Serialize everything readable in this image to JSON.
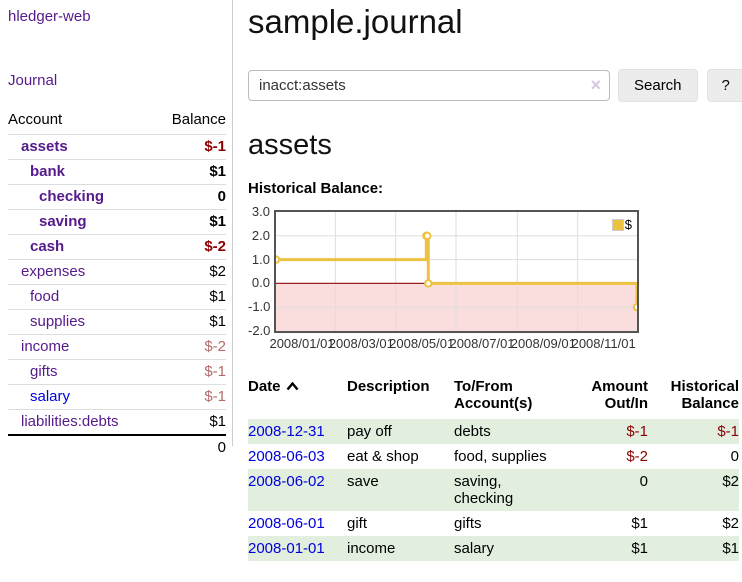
{
  "app": {
    "brand": "hledger-web",
    "nav_journal": "Journal"
  },
  "sidebar": {
    "headers": {
      "account": "Account",
      "balance": "Balance"
    },
    "accounts": [
      {
        "name": "assets",
        "indent": 1,
        "bold": true,
        "blue": false,
        "balance": "$-1",
        "balance_style": "neg-strong"
      },
      {
        "name": "bank",
        "indent": 2,
        "bold": true,
        "blue": false,
        "balance": "$1",
        "balance_style": "pos"
      },
      {
        "name": "checking",
        "indent": 3,
        "bold": true,
        "blue": false,
        "balance": "0",
        "balance_style": "pos"
      },
      {
        "name": "saving",
        "indent": 3,
        "bold": true,
        "blue": false,
        "balance": "$1",
        "balance_style": "pos"
      },
      {
        "name": "cash",
        "indent": 2,
        "bold": true,
        "blue": false,
        "balance": "$-2",
        "balance_style": "neg-strong"
      },
      {
        "name": "expenses",
        "indent": 1,
        "bold": false,
        "blue": false,
        "balance": "$2",
        "balance_style": "pos"
      },
      {
        "name": "food",
        "indent": 2,
        "bold": false,
        "blue": false,
        "balance": "$1",
        "balance_style": "pos"
      },
      {
        "name": "supplies",
        "indent": 2,
        "bold": false,
        "blue": false,
        "balance": "$1",
        "balance_style": "pos"
      },
      {
        "name": "income",
        "indent": 1,
        "bold": false,
        "blue": false,
        "balance": "$-2",
        "balance_style": "neg-muted"
      },
      {
        "name": "gifts",
        "indent": 2,
        "bold": false,
        "blue": false,
        "balance": "$-1",
        "balance_style": "neg-muted"
      },
      {
        "name": "salary",
        "indent": 2,
        "bold": false,
        "blue": true,
        "balance": "$-1",
        "balance_style": "neg-muted"
      },
      {
        "name": "liabilities:debts",
        "indent": 1,
        "bold": false,
        "blue": false,
        "balance": "$1",
        "balance_style": "pos"
      }
    ],
    "total": "0"
  },
  "header": {
    "title": "sample.journal"
  },
  "search": {
    "value": "inacct:assets",
    "clear_icon": "×",
    "button_label": "Search",
    "help_label": "?"
  },
  "account_page": {
    "title": "assets",
    "chart_label": "Historical Balance:"
  },
  "chart_data": {
    "type": "line",
    "step": true,
    "series": [
      {
        "name": "$",
        "color": "#edc240",
        "points": [
          {
            "date": "2008-01-01",
            "value": 1
          },
          {
            "date": "2008-06-01",
            "value": 2
          },
          {
            "date": "2008-06-02",
            "value": 2
          },
          {
            "date": "2008-06-03",
            "value": 0
          },
          {
            "date": "2008-12-31",
            "value": -1
          }
        ]
      }
    ],
    "xrange": [
      "2008-01-01",
      "2008-12-31"
    ],
    "ylim": [
      -2,
      3
    ],
    "yticks": [
      "3.0",
      "2.0",
      "1.0",
      "0.0",
      "-1.0",
      "-2.0"
    ],
    "ytick_values": [
      3,
      2,
      1,
      0,
      -1,
      -2
    ],
    "xticks": [
      "2008/01/01",
      "2008/03/01",
      "2008/05/01",
      "2008/07/01",
      "2008/09/01",
      "2008/11/01"
    ],
    "grid": true,
    "legend": {
      "label": "$",
      "position": "top-right"
    },
    "zero_line_color": "#9c2222",
    "negative_region_color": "#fadddd",
    "grid_color": "#dedede"
  },
  "register": {
    "columns": {
      "date": "Date",
      "description": "Description",
      "accounts": "To/From Account(s)",
      "amount": "Amount Out/In",
      "balance": "Historical Balance"
    },
    "sort": "ascending",
    "rows": [
      {
        "date": "2008-12-31",
        "description": "pay off",
        "accounts": "debts",
        "amount": "$-1",
        "balance": "$-1",
        "shaded": true
      },
      {
        "date": "2008-06-03",
        "description": "eat & shop",
        "accounts": "food, supplies",
        "amount": "$-2",
        "balance": "0",
        "shaded": false
      },
      {
        "date": "2008-06-02",
        "description": "save",
        "accounts": "saving, checking",
        "amount": "0",
        "balance": "$2",
        "shaded": true
      },
      {
        "date": "2008-06-01",
        "description": "gift",
        "accounts": "gifts",
        "amount": "$1",
        "balance": "$2",
        "shaded": false
      },
      {
        "date": "2008-01-01",
        "description": "income",
        "accounts": "salary",
        "amount": "$1",
        "balance": "$1",
        "shaded": true
      }
    ]
  }
}
